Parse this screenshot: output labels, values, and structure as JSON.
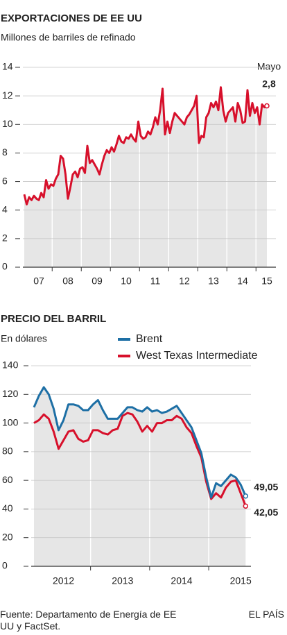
{
  "chart_data": [
    {
      "type": "line",
      "title": "EXPORTACIONES DE EE UU",
      "subtitle": "Millones de barriles de refinado",
      "annotations": [
        "Mayo",
        "2,8"
      ],
      "categories": [
        null,
        null,
        null,
        null,
        null,
        null,
        "07",
        null,
        null,
        null,
        null,
        null,
        null,
        null,
        null,
        null,
        null,
        null,
        "08",
        null,
        null,
        null,
        null,
        null,
        null,
        null,
        null,
        null,
        null,
        null,
        "09",
        null,
        null,
        null,
        null,
        null,
        null,
        null,
        null,
        null,
        null,
        null,
        "10",
        null,
        null,
        null,
        null,
        null,
        null,
        null,
        null,
        null,
        null,
        null,
        "11",
        null,
        null,
        null,
        null,
        null,
        null,
        null,
        null,
        null,
        null,
        null,
        "12",
        null,
        null,
        null,
        null,
        null,
        null,
        null,
        null,
        null,
        null,
        null,
        "13",
        null,
        null,
        null,
        null,
        null,
        null,
        null,
        null,
        null,
        null,
        null,
        "14",
        null,
        null,
        null,
        null,
        null,
        null,
        null,
        null,
        null,
        "15"
      ],
      "series": [
        {
          "name": null,
          "color": "#d7102b",
          "values": [
            5.1,
            4.4,
            4.9,
            4.7,
            5.0,
            4.8,
            4.7,
            5.2,
            4.9,
            6.1,
            5.5,
            5.8,
            5.7,
            6.2,
            6.5,
            7.8,
            7.6,
            6.5,
            4.8,
            5.6,
            6.5,
            6.7,
            6.3,
            6.9,
            7.0,
            6.6,
            8.5,
            7.3,
            7.5,
            7.2,
            6.9,
            6.5,
            7.2,
            7.8,
            8.2,
            8.0,
            8.4,
            8.1,
            8.6,
            9.2,
            8.8,
            8.7,
            9.1,
            9.0,
            9.3,
            9.0,
            8.8,
            10.2,
            9.2,
            9.0,
            9.1,
            9.5,
            9.3,
            9.8,
            10.5,
            10.0,
            11.0,
            12.5,
            9.3,
            10.2,
            9.4,
            10.2,
            10.8,
            10.6,
            10.4,
            10.2,
            10.0,
            10.5,
            10.7,
            11.0,
            11.3,
            12.0,
            8.7,
            9.2,
            9.1,
            10.5,
            10.8,
            11.5,
            11.2,
            11.6,
            11.0,
            12.6,
            11.0,
            10.2,
            10.8,
            11.0,
            11.2,
            10.2,
            11.5,
            11.0,
            10.1,
            10.2,
            12.4,
            10.6,
            11.5,
            10.8,
            11.2,
            10.0,
            11.4,
            11.2,
            11.3
          ]
        }
      ],
      "ylim": [
        0,
        14
      ],
      "yticks": [
        0,
        2,
        4,
        6,
        8,
        10,
        12,
        14
      ],
      "grid": true,
      "area_color": "#e6e6e6"
    },
    {
      "type": "line",
      "title": "PRECIO DEL BARRIL",
      "subtitle": "En dólares",
      "legend": "top",
      "categories": [
        null,
        null,
        null,
        null,
        null,
        null,
        "2012",
        null,
        null,
        null,
        null,
        null,
        null,
        null,
        null,
        null,
        null,
        null,
        "2013",
        null,
        null,
        null,
        null,
        null,
        null,
        null,
        null,
        null,
        null,
        null,
        "2014",
        null,
        null,
        null,
        null,
        null,
        null,
        null,
        null,
        null,
        null,
        null,
        "2015",
        null
      ],
      "series": [
        {
          "name": "Brent",
          "color": "#1d6fa5",
          "values": [
            111,
            119,
            125,
            120,
            110,
            95,
            102,
            113,
            113,
            112,
            109,
            109,
            113,
            116,
            109,
            103,
            103,
            103,
            107,
            111,
            111,
            109,
            108,
            111,
            108,
            109,
            107,
            108,
            110,
            112,
            107,
            102,
            97,
            88,
            79,
            62,
            48,
            58,
            56,
            60,
            64,
            62,
            57,
            49.05
          ],
          "value_labels": [
            null,
            null,
            null,
            null,
            null,
            null,
            null,
            null,
            null,
            null,
            null,
            null,
            null,
            null,
            null,
            null,
            null,
            null,
            null,
            null,
            null,
            null,
            null,
            null,
            null,
            null,
            null,
            null,
            null,
            null,
            null,
            null,
            null,
            null,
            null,
            null,
            null,
            null,
            null,
            null,
            null,
            null,
            null,
            "49,05"
          ]
        },
        {
          "name": "West Texas Intermediate",
          "color": "#d7102b",
          "values": [
            100,
            102,
            106,
            103,
            94,
            82,
            88,
            94,
            95,
            89,
            87,
            88,
            95,
            95,
            93,
            92,
            95,
            96,
            105,
            107,
            106,
            101,
            94,
            98,
            94,
            100,
            100,
            102,
            102,
            105,
            103,
            97,
            93,
            84,
            76,
            59,
            47,
            51,
            48,
            55,
            59,
            60,
            51,
            42.05
          ],
          "value_labels": [
            null,
            null,
            null,
            null,
            null,
            null,
            null,
            null,
            null,
            null,
            null,
            null,
            null,
            null,
            null,
            null,
            null,
            null,
            null,
            null,
            null,
            null,
            null,
            null,
            null,
            null,
            null,
            null,
            null,
            null,
            null,
            null,
            null,
            null,
            null,
            null,
            null,
            null,
            null,
            null,
            null,
            null,
            null,
            "42,05"
          ]
        }
      ],
      "ylim": [
        0,
        140
      ],
      "yticks": [
        0,
        20,
        40,
        60,
        80,
        100,
        120,
        140
      ],
      "grid": true,
      "area_color": "#e6e6e6"
    }
  ],
  "footer": {
    "source": "Fuente: Departamento de Energía de EE UU y FactSet.",
    "credit": "EL PAÍS"
  }
}
